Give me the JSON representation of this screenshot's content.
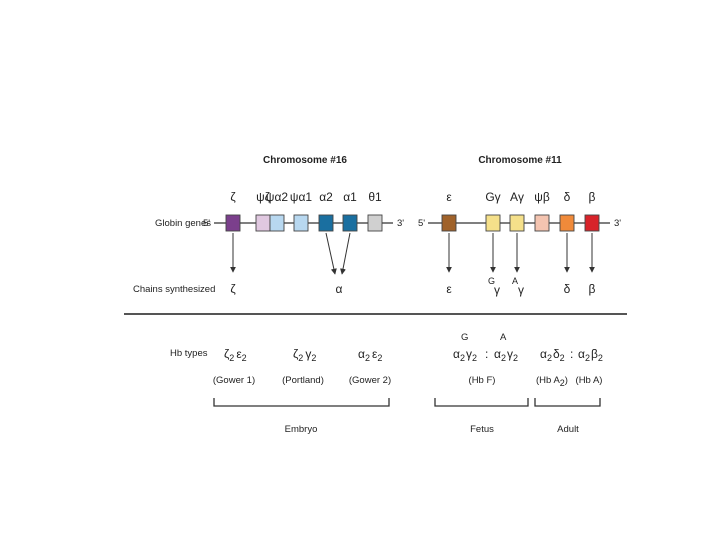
{
  "chromosome16": {
    "title": "Chromosome #16",
    "five_prime": "5'",
    "three_prime": "3'",
    "genes": [
      {
        "label": "ζ",
        "color": "#7b3f8c"
      },
      {
        "label": "ψζ",
        "color": "#e0c8e0"
      },
      {
        "label": "ψα2",
        "color": "#b8d8f0"
      },
      {
        "label": "ψα1",
        "color": "#b8d8f0"
      },
      {
        "label": "α2",
        "color": "#1a6fa0"
      },
      {
        "label": "α1",
        "color": "#1a6fa0"
      },
      {
        "label": "θ1",
        "color": "#d0d0d0"
      }
    ],
    "chains": [
      "ζ",
      "α"
    ]
  },
  "chromosome11": {
    "title": "Chromosome #11",
    "five_prime": "5'",
    "three_prime": "3'",
    "genes": [
      {
        "label": "ε",
        "color": "#a0622a"
      },
      {
        "label": "Gγ",
        "color": "#f5e08a"
      },
      {
        "label": "Aγ",
        "color": "#f5e08a"
      },
      {
        "label": "ψβ",
        "color": "#f4c4b0"
      },
      {
        "label": "δ",
        "color": "#f08a3a"
      },
      {
        "label": "β",
        "color": "#d8232a"
      }
    ],
    "chains": {
      "epsilon": "ε",
      "g_gamma_sup": "G",
      "a_gamma_sup": "A",
      "gamma": "γ",
      "delta": "δ",
      "beta": "β"
    }
  },
  "row_labels": {
    "globin_genes": "Globin genes",
    "chains_synthesized": "Chains synthesized",
    "hb_types": "Hb types"
  },
  "hb_types": {
    "gower1": {
      "formula_a": "ζ",
      "sub_a": "2",
      "formula_b": "ε",
      "sub_b": "2",
      "name": "(Gower 1)"
    },
    "portland": {
      "formula_a": "ζ",
      "sub_a": "2",
      "formula_b": "γ",
      "sub_b": "2",
      "name": "(Portland)"
    },
    "gower2": {
      "formula_a": "α",
      "sub_a": "2",
      "formula_b": "ε",
      "sub_b": "2",
      "name": "(Gower 2)"
    },
    "hbf": {
      "g_label": "G",
      "a_label": "A",
      "formula_a": "α",
      "sub_a": "2",
      "formula_b": "γ",
      "sub_b": "2",
      "colon": ":",
      "name": "(Hb F)"
    },
    "hba2": {
      "formula_a": "α",
      "sub_a": "2",
      "formula_b": "δ",
      "sub_b": "2",
      "name_main": "(Hb A",
      "name_sub": "2",
      "name_end": ")"
    },
    "hba": {
      "formula_a": "α",
      "sub_a": "2",
      "formula_b": "β",
      "sub_b": "2",
      "name": "(Hb A)"
    },
    "adult_colon": ":"
  },
  "stages": {
    "embryo": "Embryo",
    "fetus": "Fetus",
    "adult": "Adult"
  }
}
